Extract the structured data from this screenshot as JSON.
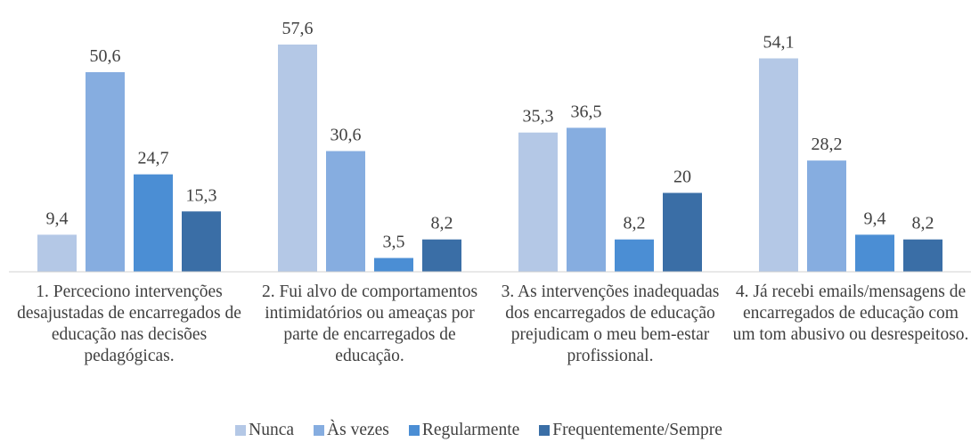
{
  "chart_data": {
    "type": "bar",
    "categories": [
      "1. Perceciono intervenções desajustadas de encarregados de educação nas decisões pedagógicas.",
      "2. Fui alvo de comportamentos intimidatórios ou ameaças por parte de encarregados de educação.",
      "3. As intervenções inadequadas dos encarregados de educação prejudicam o meu bem-estar profissional.",
      "4. Já recebi emails/mensagens de encarregados de educação com um tom abusivo ou desrespeitoso."
    ],
    "series": [
      {
        "name": "Nunca",
        "color": "#b4c8e6",
        "values": [
          9.4,
          57.6,
          35.3,
          54.1
        ],
        "value_labels": [
          "9,4",
          "57,6",
          "35,3",
          "54,1"
        ]
      },
      {
        "name": "Às vezes",
        "color": "#86ade0",
        "values": [
          50.6,
          30.6,
          36.5,
          28.2
        ],
        "value_labels": [
          "50,6",
          "30,6",
          "36,5",
          "28,2"
        ]
      },
      {
        "name": "Regularmente",
        "color": "#4b8ed4",
        "values": [
          24.7,
          3.5,
          8.2,
          9.4
        ],
        "value_labels": [
          "24,7",
          "3,5",
          "8,2",
          "9,4"
        ]
      },
      {
        "name": "Frequentemente/Sempre",
        "color": "#3a6ea6",
        "values": [
          15.3,
          8.2,
          20,
          8.2
        ],
        "value_labels": [
          "15,3",
          "8,2",
          "20",
          "8,2"
        ]
      }
    ],
    "legend": "bottom"
  }
}
